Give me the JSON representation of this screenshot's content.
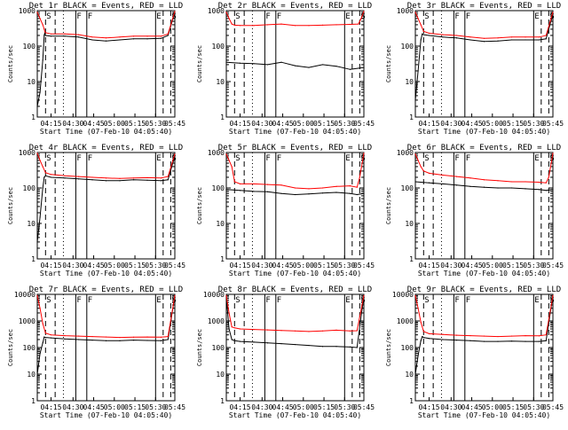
{
  "figure": {
    "xlabel": "Start Time (07-Feb-10 04:05:40)",
    "ylabel": "Counts/sec"
  },
  "chart_data": [
    {
      "type": "line",
      "title": "Det 1r BLACK = Events, RED = LLD",
      "xlabel": "Start Time (07-Feb-10 04:05:40)",
      "ylabel": "Counts/sec",
      "yscale": "log",
      "ylim": [
        1,
        1000
      ],
      "yticks": [
        1,
        10,
        100,
        1000
      ],
      "xticks": [
        "04:15",
        "04:30",
        "04:45",
        "05:00",
        "05:15",
        "05:30",
        "05:45"
      ],
      "markers": [
        {
          "label": "S"
        },
        {
          "label": "F"
        },
        {
          "label": "F"
        },
        {
          "label": "E"
        },
        {
          "label": "S"
        }
      ],
      "series": [
        {
          "name": "Events",
          "color": "#000000",
          "x": [
            0,
            2,
            4,
            5,
            5.5,
            6,
            10,
            20,
            30,
            40,
            50,
            60,
            70,
            80,
            90,
            95,
            100
          ],
          "values": [
            2,
            5,
            40,
            200,
            240,
            200,
            190,
            190,
            180,
            150,
            140,
            150,
            160,
            160,
            165,
            200,
            900
          ]
        },
        {
          "name": "LLD",
          "color": "#ff0000",
          "x": [
            0,
            2,
            4,
            5,
            5.5,
            6,
            10,
            20,
            30,
            40,
            50,
            60,
            70,
            80,
            90,
            95,
            100
          ],
          "values": [
            900,
            600,
            400,
            300,
            260,
            240,
            220,
            220,
            210,
            180,
            170,
            180,
            190,
            190,
            190,
            220,
            950
          ]
        }
      ]
    },
    {
      "type": "line",
      "title": "Det 2r BLACK = Events, RED = LLD",
      "xlabel": "Start Time (07-Feb-10 04:05:40)",
      "ylabel": "Counts/sec",
      "yscale": "log",
      "ylim": [
        1,
        1000
      ],
      "yticks": [
        1,
        10,
        100,
        1000
      ],
      "xticks": [
        "04:15",
        "04:30",
        "04:45",
        "05:00",
        "05:15",
        "05:30",
        "05:45"
      ],
      "markers": [
        {
          "label": "S"
        },
        {
          "label": "F"
        },
        {
          "label": "F"
        },
        {
          "label": "E"
        },
        {
          "label": "S"
        }
      ],
      "series": [
        {
          "name": "Events",
          "color": "#000000",
          "x": [
            0,
            10,
            20,
            30,
            40,
            50,
            60,
            70,
            80,
            90,
            100
          ],
          "values": [
            35,
            33,
            32,
            30,
            35,
            28,
            25,
            30,
            27,
            22,
            25
          ]
        },
        {
          "name": "LLD",
          "color": "#ff0000",
          "x": [
            0,
            2,
            4,
            6,
            10,
            20,
            30,
            40,
            50,
            60,
            70,
            80,
            90,
            96,
            98,
            100
          ],
          "values": [
            900,
            600,
            420,
            390,
            380,
            380,
            400,
            420,
            380,
            380,
            390,
            400,
            410,
            420,
            600,
            950
          ]
        }
      ]
    },
    {
      "type": "line",
      "title": "Det 3r BLACK = Events, RED = LLD",
      "xlabel": "Start Time (07-Feb-10 04:05:40)",
      "ylabel": "Counts/sec",
      "yscale": "log",
      "ylim": [
        1,
        1000
      ],
      "yticks": [
        1,
        10,
        100,
        1000
      ],
      "xticks": [
        "04:15",
        "04:30",
        "04:45",
        "05:00",
        "05:15",
        "05:30",
        "05:45"
      ],
      "markers": [
        {
          "label": "S"
        },
        {
          "label": "F"
        },
        {
          "label": "F"
        },
        {
          "label": "E"
        },
        {
          "label": "S"
        }
      ],
      "series": [
        {
          "name": "Events",
          "color": "#000000",
          "x": [
            0,
            2,
            4,
            5,
            6,
            10,
            20,
            30,
            40,
            50,
            60,
            70,
            80,
            90,
            95,
            100
          ],
          "values": [
            3,
            20,
            150,
            220,
            210,
            200,
            180,
            170,
            150,
            135,
            140,
            150,
            150,
            150,
            160,
            800
          ]
        },
        {
          "name": "LLD",
          "color": "#ff0000",
          "x": [
            0,
            2,
            4,
            6,
            10,
            20,
            30,
            40,
            50,
            60,
            70,
            80,
            90,
            95,
            100
          ],
          "values": [
            900,
            600,
            400,
            260,
            230,
            210,
            200,
            180,
            165,
            170,
            180,
            180,
            180,
            200,
            900
          ]
        }
      ]
    },
    {
      "type": "line",
      "title": "Det 4r BLACK = Events, RED = LLD",
      "xlabel": "Start Time (07-Feb-10 04:05:40)",
      "ylabel": "Counts/sec",
      "yscale": "log",
      "ylim": [
        1,
        1000
      ],
      "yticks": [
        1,
        10,
        100,
        1000
      ],
      "xticks": [
        "04:15",
        "04:30",
        "04:45",
        "05:00",
        "05:15",
        "05:30",
        "05:45"
      ],
      "markers": [
        {
          "label": "S"
        },
        {
          "label": "F"
        },
        {
          "label": "F"
        },
        {
          "label": "E"
        },
        {
          "label": "S"
        }
      ],
      "series": [
        {
          "name": "Events",
          "color": "#000000",
          "x": [
            0,
            2,
            4,
            5,
            6,
            10,
            20,
            30,
            40,
            50,
            60,
            70,
            80,
            90,
            95,
            100
          ],
          "values": [
            3,
            15,
            100,
            200,
            220,
            200,
            190,
            180,
            170,
            160,
            160,
            170,
            165,
            160,
            170,
            800
          ]
        },
        {
          "name": "LLD",
          "color": "#ff0000",
          "x": [
            0,
            2,
            4,
            6,
            10,
            20,
            30,
            40,
            50,
            60,
            70,
            80,
            90,
            95,
            100
          ],
          "values": [
            950,
            600,
            400,
            270,
            240,
            220,
            210,
            200,
            190,
            185,
            190,
            195,
            190,
            210,
            900
          ]
        }
      ]
    },
    {
      "type": "line",
      "title": "Det 5r BLACK = Events, RED = LLD",
      "xlabel": "Start Time (07-Feb-10 04:05:40)",
      "ylabel": "Counts/sec",
      "yscale": "log",
      "ylim": [
        1,
        1000
      ],
      "yticks": [
        1,
        10,
        100,
        1000
      ],
      "xticks": [
        "04:15",
        "04:30",
        "04:45",
        "05:00",
        "05:15",
        "05:30",
        "05:45"
      ],
      "markers": [
        {
          "label": "S"
        },
        {
          "label": "F"
        },
        {
          "label": "F"
        },
        {
          "label": "E"
        },
        {
          "label": "S"
        }
      ],
      "series": [
        {
          "name": "Events",
          "color": "#000000",
          "x": [
            0,
            10,
            20,
            30,
            40,
            50,
            60,
            70,
            80,
            90,
            95,
            100
          ],
          "values": [
            90,
            85,
            80,
            78,
            70,
            65,
            68,
            72,
            75,
            70,
            65,
            70
          ]
        },
        {
          "name": "LLD",
          "color": "#ff0000",
          "x": [
            0,
            2,
            4,
            6,
            10,
            20,
            30,
            40,
            50,
            60,
            70,
            80,
            90,
            95,
            97,
            100
          ],
          "values": [
            900,
            600,
            400,
            150,
            130,
            130,
            125,
            120,
            100,
            95,
            100,
            110,
            115,
            105,
            200,
            950
          ]
        }
      ]
    },
    {
      "type": "line",
      "title": "Det 6r BLACK = Events, RED = LLD",
      "xlabel": "Start Time (07-Feb-10 04:05:40)",
      "ylabel": "Counts/sec",
      "yscale": "log",
      "ylim": [
        1,
        1000
      ],
      "yticks": [
        1,
        10,
        100,
        1000
      ],
      "xticks": [
        "04:15",
        "04:30",
        "04:45",
        "05:00",
        "05:15",
        "05:30",
        "05:45"
      ],
      "markers": [
        {
          "label": "S"
        },
        {
          "label": "F"
        },
        {
          "label": "F"
        },
        {
          "label": "E"
        },
        {
          "label": "S"
        }
      ],
      "series": [
        {
          "name": "Events",
          "color": "#000000",
          "x": [
            0,
            10,
            20,
            30,
            40,
            50,
            60,
            70,
            80,
            90,
            95,
            100
          ],
          "values": [
            150,
            140,
            130,
            120,
            110,
            105,
            100,
            100,
            95,
            90,
            85,
            90
          ]
        },
        {
          "name": "LLD",
          "color": "#ff0000",
          "x": [
            0,
            2,
            4,
            6,
            10,
            20,
            30,
            40,
            50,
            60,
            70,
            80,
            90,
            95,
            97,
            100
          ],
          "values": [
            900,
            600,
            400,
            300,
            260,
            230,
            210,
            190,
            170,
            160,
            150,
            150,
            145,
            140,
            200,
            950
          ]
        }
      ]
    },
    {
      "type": "line",
      "title": "Det 7r BLACK = Events, RED = LLD",
      "xlabel": "Start Time (07-Feb-10 04:05:40)",
      "ylabel": "Counts/sec",
      "yscale": "log",
      "ylim": [
        1,
        10000
      ],
      "yticks": [
        1,
        10,
        100,
        1000,
        10000
      ],
      "xticks": [
        "04:15",
        "04:30",
        "04:45",
        "05:00",
        "05:15",
        "05:30",
        "05:45"
      ],
      "markers": [
        {
          "label": "S"
        },
        {
          "label": "F"
        },
        {
          "label": "F"
        },
        {
          "label": "E"
        },
        {
          "label": "S"
        }
      ],
      "series": [
        {
          "name": "Events",
          "color": "#000000",
          "x": [
            0,
            2,
            4,
            5,
            6,
            10,
            20,
            30,
            40,
            50,
            60,
            70,
            80,
            90,
            95,
            100
          ],
          "values": [
            10,
            60,
            150,
            250,
            240,
            230,
            210,
            200,
            190,
            180,
            180,
            190,
            185,
            180,
            200,
            9000
          ]
        },
        {
          "name": "LLD",
          "color": "#ff0000",
          "x": [
            0,
            2,
            4,
            6,
            10,
            20,
            30,
            40,
            50,
            60,
            70,
            80,
            90,
            95,
            100
          ],
          "values": [
            9000,
            3000,
            800,
            350,
            300,
            280,
            270,
            260,
            250,
            240,
            245,
            250,
            245,
            260,
            9000
          ]
        }
      ]
    },
    {
      "type": "line",
      "title": "Det 8r BLACK = Events, RED = LLD",
      "xlabel": "Start Time (07-Feb-10 04:05:40)",
      "ylabel": "Counts/sec",
      "yscale": "log",
      "ylim": [
        1,
        10000
      ],
      "yticks": [
        1,
        10,
        100,
        1000,
        10000
      ],
      "xticks": [
        "04:15",
        "04:30",
        "04:45",
        "05:00",
        "05:15",
        "05:30",
        "05:45"
      ],
      "markers": [
        {
          "label": "S"
        },
        {
          "label": "F"
        },
        {
          "label": "F"
        },
        {
          "label": "E"
        },
        {
          "label": "S"
        }
      ],
      "series": [
        {
          "name": "Events",
          "color": "#000000",
          "x": [
            0,
            2,
            4,
            6,
            10,
            20,
            30,
            40,
            50,
            60,
            70,
            80,
            90,
            95,
            100
          ],
          "values": [
            8000,
            500,
            200,
            180,
            170,
            160,
            150,
            140,
            130,
            120,
            110,
            110,
            105,
            100,
            9000
          ]
        },
        {
          "name": "LLD",
          "color": "#ff0000",
          "x": [
            0,
            2,
            4,
            6,
            10,
            20,
            30,
            40,
            50,
            60,
            70,
            80,
            90,
            95,
            100
          ],
          "values": [
            9000,
            2000,
            600,
            550,
            500,
            480,
            460,
            440,
            420,
            400,
            420,
            450,
            420,
            430,
            9000
          ]
        }
      ]
    },
    {
      "type": "line",
      "title": "Det 9r BLACK = Events, RED = LLD",
      "xlabel": "Start Time (07-Feb-10 04:05:40)",
      "ylabel": "Counts/sec",
      "yscale": "log",
      "ylim": [
        1,
        10000
      ],
      "yticks": [
        1,
        10,
        100,
        1000,
        10000
      ],
      "xticks": [
        "04:15",
        "04:30",
        "04:45",
        "05:00",
        "05:15",
        "05:30",
        "05:45"
      ],
      "markers": [
        {
          "label": "S"
        },
        {
          "label": "F"
        },
        {
          "label": "F"
        },
        {
          "label": "E"
        },
        {
          "label": "S"
        }
      ],
      "series": [
        {
          "name": "Events",
          "color": "#000000",
          "x": [
            0,
            2,
            4,
            5,
            6,
            10,
            20,
            30,
            40,
            50,
            60,
            70,
            80,
            90,
            95,
            100
          ],
          "values": [
            10,
            50,
            180,
            260,
            240,
            220,
            200,
            190,
            180,
            170,
            170,
            175,
            170,
            170,
            180,
            9000
          ]
        },
        {
          "name": "LLD",
          "color": "#ff0000",
          "x": [
            0,
            2,
            4,
            6,
            10,
            20,
            30,
            40,
            50,
            60,
            70,
            80,
            90,
            95,
            100
          ],
          "values": [
            9000,
            3000,
            900,
            400,
            330,
            310,
            290,
            280,
            270,
            260,
            270,
            280,
            275,
            300,
            9000
          ]
        }
      ]
    }
  ]
}
